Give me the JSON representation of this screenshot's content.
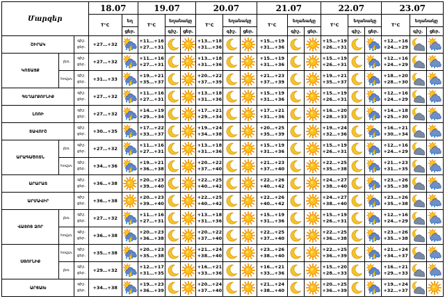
{
  "header": {
    "region_label": "Մարզեր",
    "dates": [
      "18.07",
      "19.07",
      "20.07",
      "21.07",
      "22.07",
      "23.07"
    ],
    "temp_label": "T°C",
    "weather_label": "եղանակը",
    "weather_label_short": "եղ",
    "day_label": "ցեր.",
    "night_label": "գիշ."
  },
  "tod": {
    "night": "գիշ.",
    "day": "ցեր."
  },
  "icon_legend": {
    "moon": "moon-icon",
    "sun": "sun-icon",
    "sun-cloud-lightning": "sun-cloud-lightning-icon",
    "cloud-lightning": "cloud-lightning-icon",
    "cloud-rain": "cloud-rain-icon",
    "moon-cloud": "moon-cloud-icon",
    "sun-cloud-rain": "sun-cloud-rain-icon"
  },
  "rows": [
    {
      "region": "ՇԻՐԱԿ",
      "sub": "",
      "t": [
        "+27…+32",
        "+11…+16\n+27…+31",
        "+13…+18\n+31…+36",
        "+15…+19\n+31…+36",
        "+15…+19\n+26…+31",
        "+12…+16\n+24…+29"
      ],
      "i": [
        "sun-cloud-lightning",
        "moon",
        "sun",
        "moon",
        "sun",
        "moon",
        "sun",
        "moon",
        "sun-cloud-lightning",
        "moon-cloud",
        "sun-cloud-rain"
      ]
    },
    {
      "region": "ԿՈՏԱՅՔ",
      "sub": "լեռ.",
      "t": [
        "+27…+32",
        "+11…+16\n+27…+31",
        "+13…+18\n+31…+36",
        "+15…+19\n+31…+36",
        "+15…+19\n+26…+31",
        "+12…+16\n+24…+29"
      ],
      "i": [
        "sun-cloud-lightning",
        "moon",
        "sun",
        "moon",
        "sun",
        "moon",
        "sun",
        "moon",
        "sun-cloud-lightning",
        "moon-cloud",
        "sun-cloud-rain"
      ]
    },
    {
      "region": "",
      "sub": "հովտ.",
      "t": [
        "+31…+33",
        "+19…+21\n+35…+37",
        "+20…+22\n+37…+39",
        "+21…+23\n+37…+39",
        "+19…+21\n+35…+37",
        "+18…+20\n+28…+30"
      ],
      "i": [
        "sun-cloud-lightning",
        "moon",
        "sun",
        "moon",
        "sun",
        "moon",
        "sun",
        "moon",
        "sun-cloud-lightning",
        "moon-cloud",
        "sun-cloud-rain"
      ]
    },
    {
      "region": "ԳԵՂԱՐՔՈՒՆԻՔ",
      "sub": "",
      "t": [
        "+27…+32",
        "+11…+16\n+27…+31",
        "+13…+18\n+31…+36",
        "+15…+19\n+31…+36",
        "+15…+19\n+26…+31",
        "+12…+16\n+24…+29"
      ],
      "i": [
        "sun-cloud-lightning",
        "moon",
        "sun",
        "moon",
        "sun",
        "moon",
        "sun",
        "moon",
        "sun-cloud-lightning",
        "moon-cloud",
        "sun-cloud-rain"
      ]
    },
    {
      "region": "ԼՈՌԻ",
      "sub": "",
      "t": [
        "+27…+32",
        "+14…+19\n+29…+34",
        "+17…+21\n+29…+34",
        "+17…+21\n+31…+36",
        "+16…+20\n+28…+33",
        "+14…+18\n+25…+30"
      ],
      "i": [
        "sun-cloud-lightning",
        "moon",
        "sun",
        "moon",
        "sun",
        "moon",
        "sun",
        "moon",
        "sun-cloud-lightning",
        "moon-cloud",
        "sun-cloud-rain"
      ]
    },
    {
      "region": "ՏԱՎՈՒՇ",
      "sub": "",
      "t": [
        "+30…+35",
        "+17…+22\n+33…+37",
        "+19…+24\n+34…+38",
        "+20…+25\n+35…+39",
        "+19…+24\n+32…+36",
        "+16…+21\n+30…+34"
      ],
      "i": [
        "sun-cloud-lightning",
        "moon",
        "sun",
        "moon",
        "sun",
        "moon",
        "sun",
        "moon",
        "sun-cloud-lightning",
        "moon-cloud",
        "sun-cloud-rain"
      ]
    },
    {
      "region": "ԱՐԱԳԱԾՈՏՆ",
      "sub": "լեռ.",
      "t": [
        "+27…+32",
        "+11…+16\n+27…+31",
        "+13…+18\n+31…+36",
        "+15…+19\n+31…+36",
        "+15…+19\n+26…+31",
        "+12…+16\n+24…+29"
      ],
      "i": [
        "sun-cloud-lightning",
        "moon",
        "sun",
        "moon",
        "sun",
        "moon",
        "sun",
        "moon",
        "sun-cloud-lightning",
        "moon-cloud",
        "sun-cloud-rain"
      ]
    },
    {
      "region": "",
      "sub": "հովտ.",
      "t": [
        "+34…+36",
        "+19…+21\n+36…+38",
        "+20…+22\n+37…+40",
        "+21…+23\n+37…+40",
        "+22…+25\n+35…+38",
        "+21…+23\n+31…+35"
      ],
      "i": [
        "sun-cloud-lightning",
        "moon",
        "sun",
        "moon",
        "sun",
        "moon",
        "sun",
        "moon",
        "sun-cloud-lightning",
        "moon-cloud",
        "sun-cloud-rain"
      ]
    },
    {
      "region": "ԱՐԱՐԱՏ",
      "sub": "",
      "t": [
        "+36…+38",
        "+20…+23\n+39…+40",
        "+22…+25\n+40…+42",
        "+22…+26\n+40…+42",
        "+24…+27\n+38…+40",
        "+23…+26\n+35…+38"
      ],
      "i": [
        "sun",
        "moon",
        "sun",
        "moon",
        "sun",
        "moon",
        "sun",
        "moon",
        "sun-cloud-lightning",
        "moon-cloud",
        "sun-cloud-rain"
      ]
    },
    {
      "region": "ԱՐՄԱՎԻՐ",
      "sub": "",
      "t": [
        "+36…+38",
        "+20…+23\n+39…+40",
        "+22…+25\n+40…+42",
        "+22…+26\n+40…+42",
        "+24…+27\n+38…+40",
        "+23…+26\n+35…+38"
      ],
      "i": [
        "sun",
        "moon",
        "sun",
        "moon",
        "sun",
        "moon",
        "sun",
        "moon",
        "sun-cloud-lightning",
        "moon-cloud",
        "sun-cloud-rain"
      ]
    },
    {
      "region": "ՎԱՅՈՑ ՁՈՐ",
      "sub": "լեռ.",
      "t": [
        "+27…+32",
        "+11…+16\n+27…+31",
        "+13…+18\n+31…+36",
        "+15…+19\n+31…+36",
        "+15…+19\n+26…+31",
        "+12…+16\n+24…+29"
      ],
      "i": [
        "sun-cloud-lightning",
        "moon",
        "sun",
        "moon",
        "sun",
        "moon",
        "sun",
        "moon",
        "sun-cloud-lightning",
        "moon-cloud",
        "sun-cloud-rain"
      ]
    },
    {
      "region": "",
      "sub": "հովտ.",
      "t": [
        "+36…+38",
        "+20…+23\n+36…+38",
        "+20…+22\n+37…+40",
        "+22…+25\n+37…+40",
        "+22…+25\n+36…+38",
        "+23…+26\n+35…+38"
      ],
      "i": [
        "sun-cloud-lightning",
        "moon",
        "sun",
        "moon",
        "sun",
        "moon",
        "sun",
        "moon",
        "sun-cloud-lightning",
        "moon-cloud",
        "sun-cloud-rain"
      ]
    },
    {
      "region": "ՍՅՈՒՆԻՔ",
      "sub": "հովտ.",
      "t": [
        "+35…+38",
        "+20…+23\n+35…+38",
        "+21…+24\n+38…+40",
        "+23…+26\n+38…+40",
        "+22…+25\n+36…+39",
        "+21…+24\n+34…+37"
      ],
      "i": [
        "sun-cloud-lightning",
        "moon",
        "sun",
        "moon",
        "sun",
        "moon",
        "sun",
        "moon",
        "sun-cloud-lightning",
        "moon-cloud",
        "sun-cloud-rain"
      ]
    },
    {
      "region": "",
      "sub": "լեռ.",
      "t": [
        "+29…+32",
        "+12…+17\n+31…+35",
        "+16…+21\n+33…+36",
        "+16…+21\n+33…+36",
        "+15…+20\n+28…+33",
        "+16…+21\n+29…+33"
      ],
      "i": [
        "sun-cloud-lightning",
        "moon",
        "sun",
        "moon",
        "sun",
        "moon",
        "sun",
        "moon",
        "sun-cloud-lightning",
        "moon-cloud",
        "sun-cloud-rain"
      ]
    },
    {
      "region": "ԱՐՑԱԽ",
      "sub": "",
      "t": [
        "+34…+38",
        "+19…+23\n+36…+39",
        "+20…+24\n+37…+40",
        "+21…+24\n+38…+40",
        "+20…+25\n+36…+39",
        "+19…+24\n+32…+37"
      ],
      "i": [
        "sun-cloud-lightning",
        "moon",
        "sun",
        "moon",
        "sun",
        "moon",
        "sun",
        "moon",
        "sun-cloud-lightning",
        "moon-cloud",
        "sun"
      ]
    }
  ]
}
